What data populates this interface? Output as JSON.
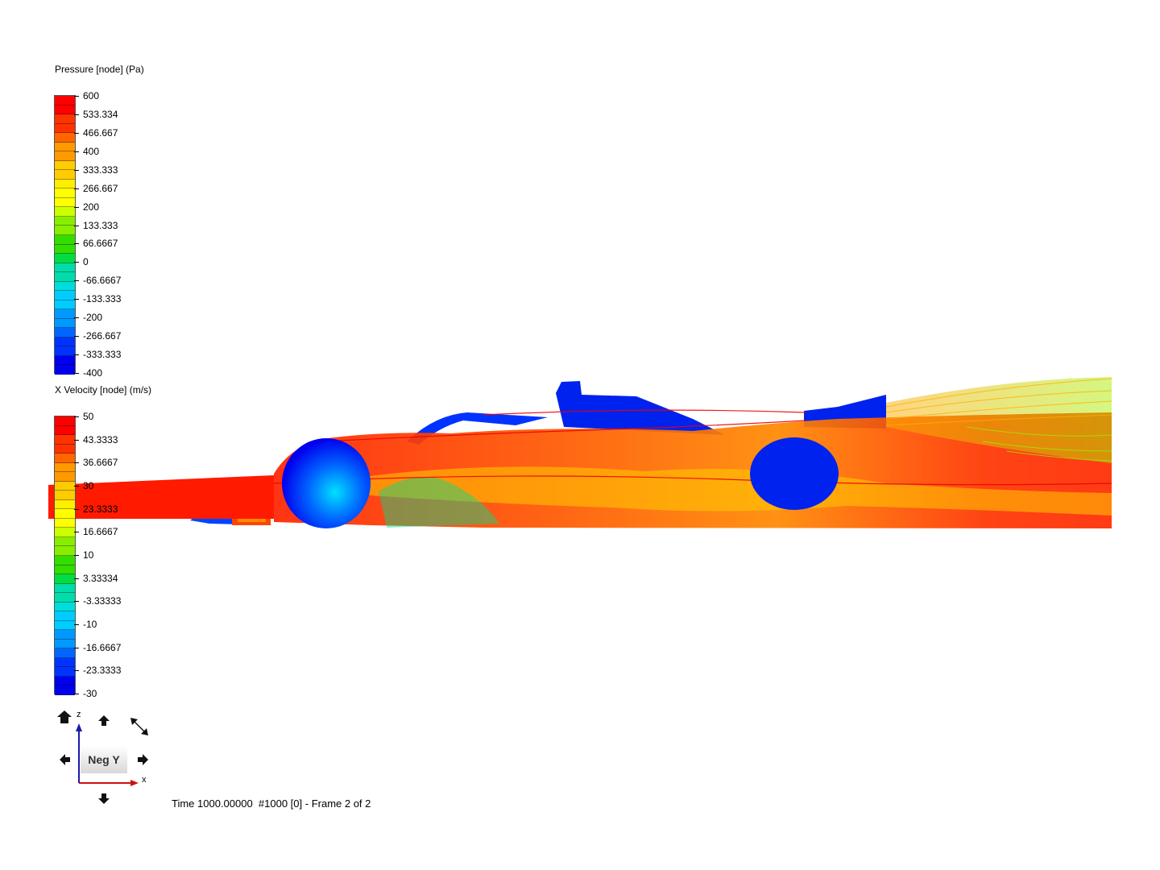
{
  "pressure_legend": {
    "title": "Pressure [node] (Pa)",
    "labels": [
      "600",
      "533.334",
      "466.667",
      "400",
      "333.333",
      "266.667",
      "200",
      "133.333",
      "66.6667",
      "0",
      "-66.6667",
      "-133.333",
      "-200",
      "-266.667",
      "-333.333",
      "-400"
    ]
  },
  "velocity_legend": {
    "title": "X Velocity [node] (m/s)",
    "labels": [
      "50",
      "43.3333",
      "36.6667",
      "30",
      "23.3333",
      "16.6667",
      "10",
      "3.33334",
      "-3.33333",
      "-10",
      "-16.6667",
      "-23.3333",
      "-30"
    ]
  },
  "colormap": [
    "#ff0000",
    "#ff3300",
    "#ff6600",
    "#ff9900",
    "#ffcc00",
    "#ffee00",
    "#ffff00",
    "#ccff00",
    "#88ee00",
    "#33dd00",
    "#00dd44",
    "#00ddaa",
    "#00dddd",
    "#00ccff",
    "#0099ff",
    "#0066ff",
    "#0033ff",
    "#0000ee"
  ],
  "orientation": {
    "view_label": "Neg Y",
    "z_axis": "z",
    "x_axis": "x",
    "icons": [
      "home-icon",
      "rotate-up-icon",
      "fit-view-icon",
      "rotate-left-icon",
      "rotate-right-icon",
      "rotate-down-icon"
    ]
  },
  "status": {
    "text": "Time 1000.00000  #1000 [0] - Frame 2 of 2"
  }
}
